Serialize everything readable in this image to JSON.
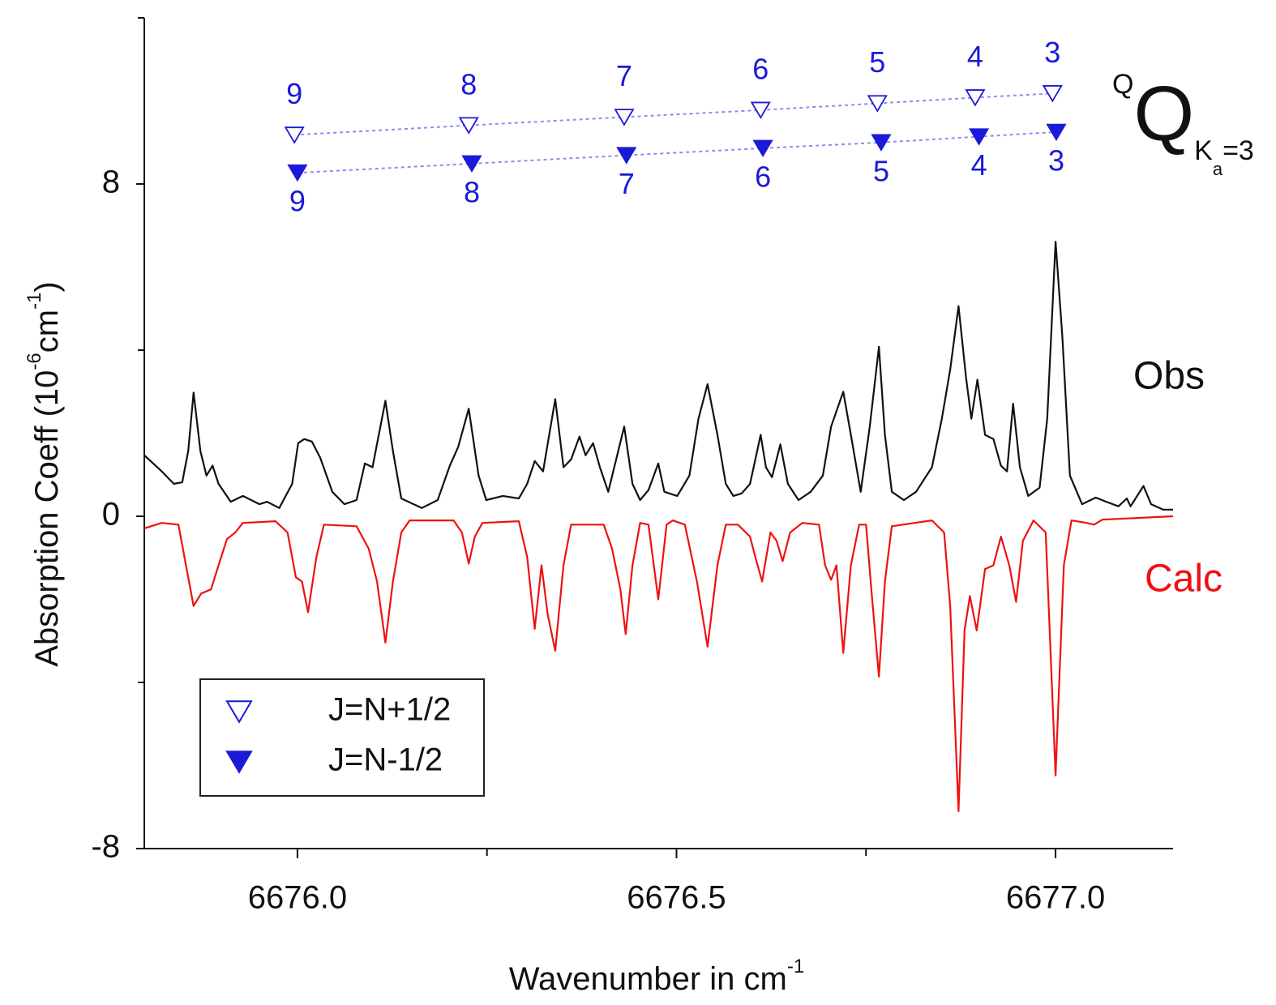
{
  "chart_data": {
    "type": "line",
    "xlabel": [
      "Wavenumber in cm",
      "-1"
    ],
    "ylabel": [
      "Absorption Coeff (10",
      "-6",
      "cm",
      "-1",
      ")"
    ],
    "annotation": [
      "Q",
      "Q",
      "K",
      "a",
      "=3"
    ],
    "xlim": [
      6675.798,
      6677.155
    ],
    "ylim": [
      -8,
      12
    ],
    "xticks": [
      {
        "value": 6676.0,
        "label": "6676.0"
      },
      {
        "value": 6676.5,
        "label": "6676.5"
      },
      {
        "value": 6677.0,
        "label": "6677.0"
      }
    ],
    "xminorticks": [
      6676.25,
      6676.75
    ],
    "yticks": [
      -8,
      0,
      8
    ],
    "yminorticks": [
      -4,
      4,
      12
    ],
    "legend": "lower left",
    "series": [
      {
        "name": "Obs",
        "color": "#111111",
        "x": [
          6675.798,
          6675.821,
          6675.837,
          6675.848,
          6675.856,
          6675.863,
          6675.872,
          6675.88,
          6675.888,
          6675.896,
          6675.912,
          6675.928,
          6675.95,
          6675.96,
          6675.976,
          6675.993,
          6676.001,
          6676.009,
          6676.019,
          6676.03,
          6676.046,
          6676.062,
          6676.078,
          6676.089,
          6676.099,
          6676.116,
          6676.126,
          6676.137,
          6676.164,
          6676.185,
          6676.201,
          6676.212,
          6676.226,
          6676.239,
          6676.249,
          6676.271,
          6676.292,
          6676.303,
          6676.313,
          6676.324,
          6676.34,
          6676.351,
          6676.361,
          6676.372,
          6676.38,
          6676.39,
          6676.399,
          6676.41,
          6676.431,
          6676.442,
          6676.452,
          6676.463,
          6676.476,
          6676.484,
          6676.501,
          6676.517,
          6676.529,
          6676.541,
          6676.554,
          6676.565,
          6676.575,
          6676.586,
          6676.597,
          6676.611,
          6676.618,
          6676.626,
          6676.637,
          6676.647,
          6676.661,
          6676.677,
          6676.693,
          6676.704,
          6676.72,
          6676.73,
          6676.743,
          6676.755,
          6676.767,
          6676.775,
          6676.784,
          6676.8,
          6676.816,
          6676.837,
          6676.85,
          6676.861,
          6676.872,
          6676.882,
          6676.889,
          6676.897,
          6676.907,
          6676.918,
          6676.928,
          6676.936,
          6676.944,
          6676.953,
          6676.964,
          6676.979,
          6676.989,
          6677.0,
          6677.009,
          6677.019,
          6677.035,
          6677.053,
          6677.067,
          6677.083,
          6677.094,
          6677.099,
          6677.116,
          6677.126,
          6677.142,
          6677.155
        ],
        "values": [
          1.47,
          1.08,
          0.78,
          0.82,
          1.57,
          2.98,
          1.57,
          0.98,
          1.22,
          0.78,
          0.35,
          0.49,
          0.29,
          0.35,
          0.2,
          0.78,
          1.76,
          1.86,
          1.8,
          1.41,
          0.59,
          0.29,
          0.39,
          1.27,
          1.18,
          2.78,
          1.57,
          0.43,
          0.2,
          0.39,
          1.22,
          1.67,
          2.59,
          0.98,
          0.39,
          0.49,
          0.43,
          0.78,
          1.33,
          1.08,
          2.82,
          1.18,
          1.37,
          1.92,
          1.47,
          1.76,
          1.18,
          0.59,
          2.16,
          0.78,
          0.39,
          0.63,
          1.27,
          0.59,
          0.49,
          0.98,
          2.35,
          3.18,
          1.96,
          0.78,
          0.49,
          0.55,
          0.78,
          1.96,
          1.18,
          0.94,
          1.73,
          0.78,
          0.39,
          0.59,
          0.98,
          2.16,
          3.0,
          1.96,
          0.59,
          2.16,
          4.08,
          1.96,
          0.59,
          0.39,
          0.59,
          1.18,
          2.35,
          3.53,
          5.06,
          3.33,
          2.35,
          3.29,
          1.96,
          1.86,
          1.22,
          1.08,
          2.71,
          1.18,
          0.49,
          0.69,
          2.35,
          6.61,
          4.31,
          0.98,
          0.29,
          0.45,
          0.35,
          0.24,
          0.43,
          0.24,
          0.73,
          0.29,
          0.16,
          0.16
        ]
      },
      {
        "name": "Calc",
        "color": "#ee1111",
        "x": [
          6675.798,
          6675.821,
          6675.843,
          6675.853,
          6675.863,
          6675.873,
          6675.886,
          6675.896,
          6675.907,
          6675.918,
          6675.928,
          6675.971,
          6675.987,
          6675.998,
          6676.006,
          6676.014,
          6676.025,
          6676.035,
          6676.078,
          6676.094,
          6676.105,
          6676.116,
          6676.126,
          6676.137,
          6676.148,
          6676.206,
          6676.217,
          6676.226,
          6676.234,
          6676.244,
          6676.292,
          6676.303,
          6676.313,
          6676.322,
          6676.33,
          6676.34,
          6676.351,
          6676.361,
          6676.404,
          6676.415,
          6676.426,
          6676.433,
          6676.442,
          6676.452,
          6676.463,
          6676.476,
          6676.487,
          6676.495,
          6676.511,
          6676.527,
          6676.541,
          6676.554,
          6676.565,
          6676.581,
          6676.597,
          6676.604,
          6676.613,
          6676.624,
          6676.632,
          6676.64,
          6676.65,
          6676.666,
          6676.688,
          6676.696,
          6676.704,
          6676.711,
          6676.72,
          6676.73,
          6676.741,
          6676.75,
          6676.758,
          6676.767,
          6676.775,
          6676.784,
          6676.837,
          6676.853,
          6676.861,
          6676.872,
          6676.88,
          6676.887,
          6676.896,
          6676.907,
          6676.918,
          6676.928,
          6676.939,
          6676.948,
          6676.957,
          6676.971,
          6676.987,
          6677.0,
          6677.011,
          6677.021,
          6677.041,
          6677.051,
          6677.062,
          6677.155
        ],
        "values": [
          -0.29,
          -0.16,
          -0.2,
          -1.18,
          -2.16,
          -1.86,
          -1.76,
          -1.18,
          -0.55,
          -0.39,
          -0.16,
          -0.12,
          -0.39,
          -1.47,
          -1.57,
          -2.31,
          -0.98,
          -0.2,
          -0.24,
          -0.78,
          -1.57,
          -3.04,
          -1.57,
          -0.39,
          -0.1,
          -0.1,
          -0.39,
          -1.14,
          -0.49,
          -0.16,
          -0.12,
          -0.98,
          -2.71,
          -1.18,
          -2.35,
          -3.24,
          -1.18,
          -0.2,
          -0.2,
          -0.78,
          -1.76,
          -2.84,
          -1.18,
          -0.16,
          -0.2,
          -2.0,
          -0.2,
          -0.1,
          -0.2,
          -1.57,
          -3.14,
          -1.18,
          -0.2,
          -0.2,
          -0.49,
          -0.98,
          -1.57,
          -0.39,
          -0.59,
          -1.08,
          -0.39,
          -0.16,
          -0.2,
          -1.18,
          -1.53,
          -1.18,
          -3.29,
          -1.18,
          -0.2,
          -0.2,
          -1.96,
          -3.86,
          -1.57,
          -0.24,
          -0.1,
          -0.39,
          -2.16,
          -7.1,
          -2.75,
          -1.92,
          -2.75,
          -1.27,
          -1.18,
          -0.49,
          -1.18,
          -2.06,
          -0.59,
          -0.1,
          -0.39,
          -6.24,
          -1.18,
          -0.1,
          -0.16,
          -0.2,
          -0.08,
          0
        ]
      },
      {
        "name": "J=N+1/2",
        "color": "#1a1ad8",
        "marker": "triangle-open",
        "x": [
          6675.996,
          6676.226,
          6676.431,
          6676.611,
          6676.765,
          6676.894,
          6676.996
        ],
        "values": [
          9.18,
          9.41,
          9.61,
          9.78,
          9.94,
          10.08,
          10.18
        ],
        "labels": [
          "9",
          "8",
          "7",
          "6",
          "5",
          "4",
          "3"
        ]
      },
      {
        "name": "J=N-1/2",
        "color": "#1a1ad8",
        "marker": "triangle-filled",
        "x": [
          6676.0,
          6676.23,
          6676.434,
          6676.614,
          6676.77,
          6676.899,
          6677.001
        ],
        "values": [
          8.27,
          8.49,
          8.69,
          8.86,
          9.0,
          9.14,
          9.25
        ],
        "labels": [
          "9",
          "8",
          "7",
          "6",
          "5",
          "4",
          "3"
        ]
      }
    ]
  }
}
